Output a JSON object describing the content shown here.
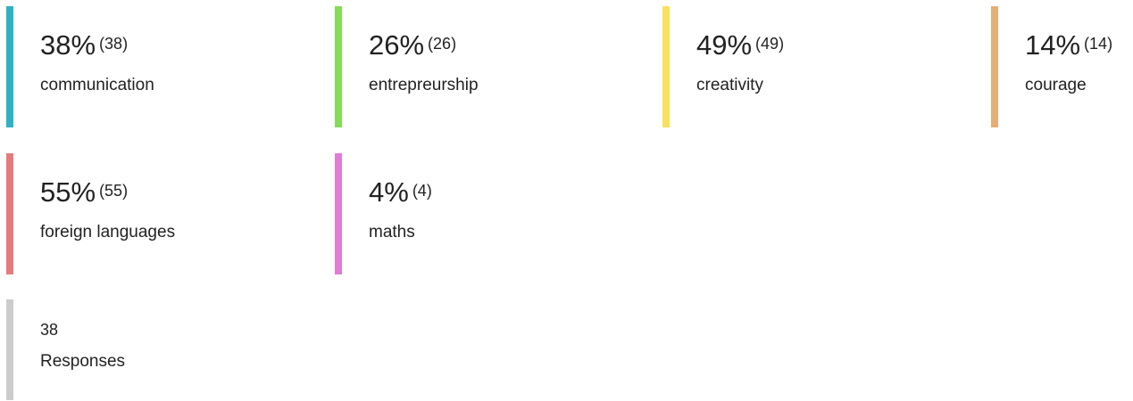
{
  "items": [
    {
      "percent": "38%",
      "count": "(38)",
      "label": "communication",
      "color": "#2fb1c4"
    },
    {
      "percent": "26%",
      "count": "(26)",
      "label": "entrepreurship",
      "color": "#84dc57"
    },
    {
      "percent": "49%",
      "count": "(49)",
      "label": "creativity",
      "color": "#fbdf5e"
    },
    {
      "percent": "14%",
      "count": "(14)",
      "label": "courage",
      "color": "#e5ae74"
    },
    {
      "percent": "55%",
      "count": "(55)",
      "label": "foreign languages",
      "color": "#e77b7b"
    },
    {
      "percent": "4%",
      "count": "(4)",
      "label": "maths",
      "color": "#e07bd6"
    }
  ],
  "summary": {
    "count": "38",
    "label": "Responses",
    "color": "#cccccc"
  }
}
